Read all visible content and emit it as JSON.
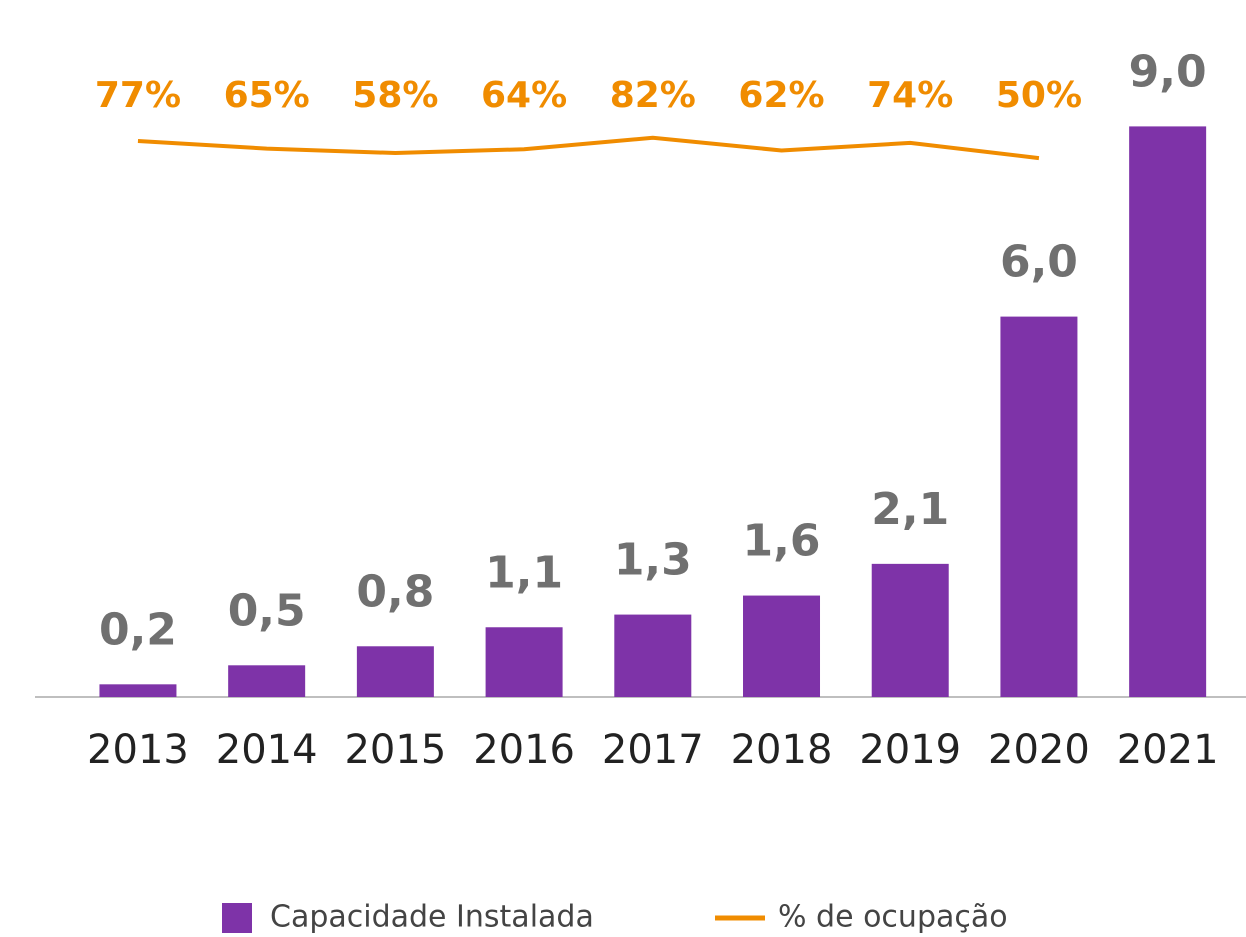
{
  "chart_data": {
    "type": "bar_line",
    "categories": [
      "2013",
      "2014",
      "2015",
      "2016",
      "2017",
      "2018",
      "2019",
      "2020",
      "2021"
    ],
    "series": [
      {
        "name": "Capacidade Instalada",
        "color": "#7e33a8",
        "type": "bar",
        "values": [
          0.2,
          0.5,
          0.8,
          1.1,
          1.3,
          1.6,
          2.1,
          6.0,
          9.0
        ],
        "value_labels": [
          "0,2",
          "0,5",
          "0,8",
          "1,1",
          "1,3",
          "1,6",
          "2,1",
          "6,0",
          "9,0"
        ]
      },
      {
        "name": "% de ocupação",
        "color": "#f08c00",
        "type": "line",
        "axis": "y2",
        "values": [
          77,
          65,
          58,
          64,
          82,
          62,
          74,
          50,
          null
        ],
        "value_labels": [
          "77%",
          "65%",
          "58%",
          "64%",
          "82%",
          "62%",
          "74%",
          "50%",
          null
        ]
      }
    ],
    "ylim": [
      0,
      10
    ],
    "y2lim": [
      -800,
      200
    ],
    "legend": "bottom"
  }
}
